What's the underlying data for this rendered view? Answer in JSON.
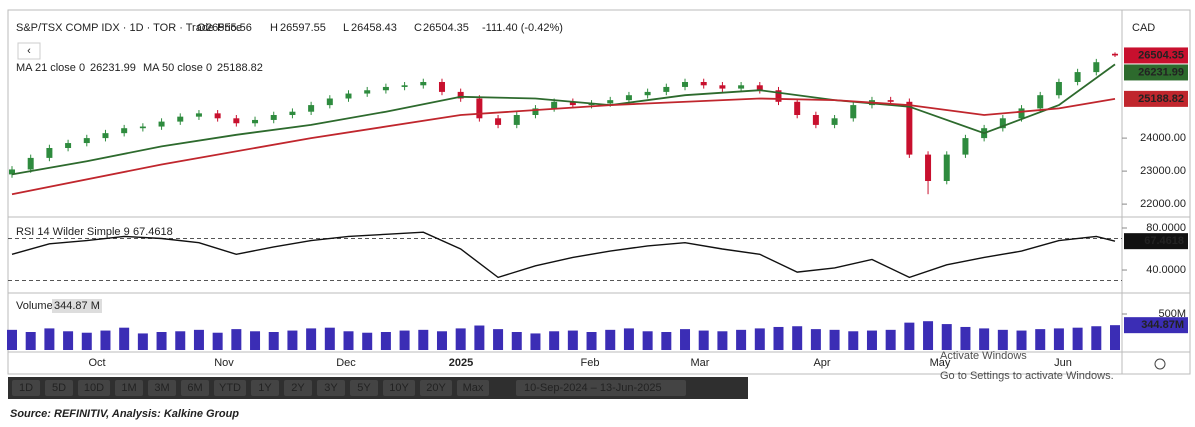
{
  "header": {
    "instrument": "S&P/TSX COMP IDX · 1D · TOR · Trade Price",
    "o_label": "O",
    "h_label": "H",
    "l_label": "L",
    "c_label": "C",
    "change": "-111.40 (-0.42%)",
    "currency": "CAD",
    "back": "‹"
  },
  "chart_data": [
    {
      "type": "candlestick",
      "open": [
        22900,
        23050,
        23400,
        23700,
        23850,
        24000,
        24150,
        24300,
        24350,
        24500,
        24650,
        24750,
        24600,
        24450,
        24550,
        24700,
        24800,
        25000,
        25200,
        25350,
        25450,
        25550,
        25600,
        25700,
        25400,
        25200,
        24600,
        24400,
        24700,
        24900,
        25100,
        25000,
        25050,
        25150,
        25300,
        25400,
        25550,
        25700,
        25600,
        25500,
        25600,
        25450,
        25100,
        24700,
        24400,
        24600,
        25000,
        25150,
        25100,
        23500,
        22700,
        23500,
        24000,
        24300,
        24600,
        24900,
        25300,
        25700,
        26000,
        26555.56
      ],
      "high": [
        23150,
        23500,
        23800,
        23950,
        24100,
        24250,
        24400,
        24450,
        24600,
        24750,
        24850,
        24850,
        24700,
        24650,
        24800,
        24900,
        25100,
        25300,
        25450,
        25550,
        25650,
        25700,
        25800,
        25800,
        25500,
        25300,
        24700,
        24800,
        25000,
        25200,
        25200,
        25150,
        25250,
        25400,
        25500,
        25650,
        25800,
        25800,
        25700,
        25700,
        25700,
        25550,
        25200,
        24800,
        24700,
        25100,
        25250,
        25250,
        25200,
        23600,
        23600,
        24100,
        24400,
        24700,
        25000,
        25400,
        25800,
        26100,
        26400,
        26597.55
      ],
      "low": [
        22800,
        22950,
        23300,
        23600,
        23750,
        23900,
        24050,
        24200,
        24250,
        24400,
        24550,
        24500,
        24350,
        24350,
        24450,
        24600,
        24700,
        24900,
        25100,
        25250,
        25350,
        25450,
        25500,
        25300,
        25100,
        24500,
        24300,
        24300,
        24600,
        24800,
        24900,
        24900,
        24950,
        25050,
        25200,
        25300,
        25450,
        25500,
        25400,
        25400,
        25350,
        25000,
        24600,
        24300,
        24300,
        24500,
        24900,
        25000,
        23400,
        22300,
        22600,
        23400,
        23900,
        24200,
        24500,
        24800,
        25200,
        25600,
        25900,
        26458.43
      ],
      "close": [
        23050,
        23400,
        23700,
        23850,
        24000,
        24150,
        24300,
        24350,
        24500,
        24650,
        24750,
        24600,
        24450,
        24550,
        24700,
        24800,
        25000,
        25200,
        25350,
        25450,
        25550,
        25600,
        25700,
        25400,
        25200,
        24600,
        24400,
        24700,
        24900,
        25100,
        25000,
        25050,
        25150,
        25300,
        25400,
        25550,
        25700,
        25600,
        25500,
        25600,
        25450,
        25100,
        24700,
        24400,
        24600,
        25000,
        25150,
        25100,
        23500,
        22700,
        23500,
        24000,
        24300,
        24600,
        24900,
        25300,
        25700,
        26000,
        26300,
        26504.35
      ],
      "up_color": "#2e8b3e",
      "down_color": "#c8102e",
      "series": [
        {
          "name": "MA 21 close 0",
          "color": "#2d6a2d",
          "x": [
            0,
            4,
            8,
            12,
            16,
            20,
            24,
            28,
            32,
            36,
            40,
            44,
            48,
            52,
            56,
            59
          ],
          "values": [
            22900,
            23300,
            23750,
            24100,
            24400,
            24800,
            25250,
            25200,
            25000,
            25300,
            25450,
            25150,
            24950,
            24150,
            25000,
            26231.99
          ]
        },
        {
          "name": "MA 50 close 0",
          "color": "#c0262d",
          "x": [
            0,
            8,
            16,
            24,
            32,
            40,
            44,
            48,
            52,
            56,
            59
          ],
          "values": [
            22300,
            23200,
            24000,
            24700,
            25000,
            25200,
            25150,
            25000,
            24700,
            24900,
            25188.82
          ]
        }
      ],
      "ylim": [
        21670,
        27730
      ],
      "yticks": [
        {
          "value": 22000,
          "label": "22000.00"
        },
        {
          "value": 23000,
          "label": "23000.00"
        },
        {
          "value": 24000,
          "label": "24000.00"
        }
      ]
    },
    {
      "type": "line",
      "name": "RSI 14 Wilder Simple 9",
      "color": "#111111",
      "x": [
        0,
        2,
        4,
        6,
        8,
        10,
        12,
        14,
        16,
        18,
        20,
        22,
        24,
        26,
        28,
        30,
        32,
        34,
        36,
        38,
        40,
        42,
        44,
        46,
        48,
        50,
        52,
        54,
        56,
        58,
        59
      ],
      "values": [
        55,
        65,
        68,
        72,
        70,
        66,
        55,
        62,
        68,
        72,
        74,
        76,
        60,
        33,
        44,
        52,
        58,
        63,
        66,
        60,
        55,
        38,
        42,
        50,
        33,
        45,
        52,
        58,
        68,
        72,
        67.4618
      ],
      "ylim": [
        21,
        87.6
      ],
      "yticks": [
        {
          "value": 40,
          "label": "40.0000"
        },
        {
          "value": 80,
          "label": "80.0000"
        }
      ],
      "levels": [
        70,
        30
      ]
    },
    {
      "type": "bar",
      "name": "Volume",
      "color": "#3b2db5",
      "values": [
        280,
        250,
        300,
        260,
        240,
        270,
        310,
        230,
        250,
        260,
        280,
        240,
        290,
        260,
        250,
        270,
        300,
        310,
        260,
        240,
        250,
        270,
        280,
        260,
        300,
        340,
        290,
        250,
        230,
        260,
        270,
        250,
        280,
        300,
        260,
        250,
        290,
        270,
        260,
        280,
        300,
        320,
        330,
        290,
        280,
        260,
        270,
        280,
        380,
        400,
        360,
        320,
        300,
        280,
        270,
        290,
        300,
        310,
        330,
        344.87
      ],
      "legend_label": "344.87 M",
      "badge_label": "344.87M",
      "ylim": [
        0,
        750
      ],
      "yticks": [
        {
          "value": 500,
          "label": "500M"
        }
      ]
    }
  ],
  "x_axis_labels": [
    "Oct",
    "Nov",
    "Dec",
    "2025",
    "Feb",
    "Mar",
    "Apr",
    "May",
    "Jun"
  ],
  "toolbar": {
    "buttons": [
      "1D",
      "5D",
      "10D",
      "1M",
      "3M",
      "6M",
      "YTD",
      "1Y",
      "2Y",
      "3Y",
      "5Y",
      "10Y",
      "20Y",
      "Max"
    ],
    "range": "10-Sep-2024  –  13-Jun-2025"
  },
  "watermark": {
    "title": "Activate Windows",
    "subtitle": "Go to Settings to activate Windows."
  },
  "source": "Source: REFINITIV, Analysis: Kalkine Group"
}
